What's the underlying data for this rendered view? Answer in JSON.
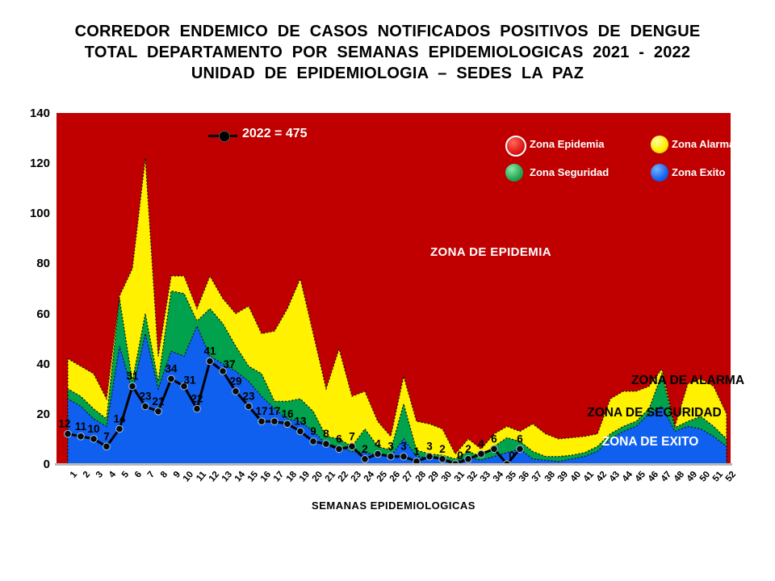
{
  "title": {
    "line1": "CORREDOR ENDEMICO DE CASOS NOTIFICADOS POSITIVOS DE DENGUE",
    "line2": "TOTAL DEPARTAMENTO POR SEMANAS EPIDEMIOLOGICAS 2021 - 2022",
    "line3": "UNIDAD DE EPIDEMIOLOGIA – SEDES LA PAZ"
  },
  "series_legend": {
    "label_2022": "2022 = 475"
  },
  "legend": {
    "items": [
      {
        "id": "epidemia",
        "label": "Zona Epidemia",
        "color": "#e01818"
      },
      {
        "id": "alarma",
        "label": "Zona Alarma",
        "color": "#ffee00"
      },
      {
        "id": "seguridad",
        "label": "Zona Seguridad",
        "color": "#22a854"
      },
      {
        "id": "exito",
        "label": "Zona Exito",
        "color": "#1266f0"
      }
    ]
  },
  "zone_labels": {
    "epidemia": "ZONA DE EPIDEMIA",
    "alarma": "ZONA DE ALARMA",
    "seguridad": "ZONA DE  SEGURIDAD",
    "exito": "ZONA DE  EXITO"
  },
  "chart_data": {
    "type": "area+line",
    "title": "Corredor endemico dengue 2021-2022",
    "xlabel": "SEMANAS EPIDEMIOLOGICAS",
    "ylabel": "",
    "ylim": [
      0,
      140
    ],
    "yticks": [
      0,
      20,
      40,
      60,
      80,
      100,
      120,
      140
    ],
    "x": [
      1,
      2,
      3,
      4,
      5,
      6,
      7,
      8,
      9,
      10,
      11,
      12,
      13,
      14,
      15,
      16,
      17,
      18,
      19,
      20,
      21,
      22,
      23,
      24,
      25,
      26,
      27,
      28,
      29,
      30,
      31,
      32,
      33,
      34,
      35,
      36,
      37,
      38,
      39,
      40,
      41,
      42,
      43,
      44,
      45,
      46,
      47,
      48,
      49,
      50,
      51,
      52
    ],
    "grid": false,
    "legend_position": "top-right inside plot",
    "background_zone_color": "#c00000",
    "series": [
      {
        "name": "Zona Alarma (limite superior)",
        "type": "area",
        "color": "#fff100",
        "values": [
          42,
          39,
          36,
          26,
          67,
          78,
          122,
          43,
          75,
          75,
          62,
          75,
          66,
          60,
          63,
          52,
          53,
          62,
          74,
          52,
          30,
          46,
          27,
          29,
          17,
          11,
          35,
          17,
          16,
          14,
          4,
          10,
          6,
          12,
          15,
          13,
          16,
          12,
          10,
          10.5,
          11,
          12,
          26,
          29,
          29,
          31,
          38,
          15,
          32,
          34,
          31,
          20
        ]
      },
      {
        "name": "Zona Seguridad (limite superior)",
        "type": "area",
        "color": "#00a24d",
        "values": [
          30,
          27,
          22,
          18,
          66,
          33,
          60,
          33,
          69,
          68,
          57,
          62,
          56,
          47,
          39,
          36,
          25,
          25,
          26,
          21,
          11,
          10,
          7,
          14,
          7,
          5.5,
          24,
          5.5,
          4,
          3.5,
          2,
          5,
          3,
          7,
          10.5,
          9,
          5,
          3,
          3,
          3.5,
          4.5,
          7,
          12,
          15,
          17,
          22,
          36,
          14.5,
          17,
          19,
          15,
          10
        ]
      },
      {
        "name": "Zona Exito (limite superior)",
        "type": "area",
        "color": "#1060f0",
        "values": [
          26,
          23,
          18,
          15,
          47,
          29,
          52,
          30,
          45,
          43,
          55,
          43,
          40,
          37,
          33,
          27,
          22,
          18,
          17,
          13,
          8,
          7,
          5,
          4.5,
          3.5,
          3,
          10,
          3,
          2.5,
          2,
          1,
          2.5,
          1.5,
          3,
          4.5,
          6,
          2,
          1.5,
          1,
          2,
          3,
          5,
          10,
          13,
          15,
          20,
          23,
          13,
          15,
          14,
          11,
          7
        ]
      },
      {
        "name": "2022",
        "type": "line",
        "color": "#000000",
        "total": 475,
        "values": [
          12,
          11,
          10,
          7,
          14,
          31,
          23,
          21,
          34,
          31,
          22,
          41,
          37,
          29,
          23,
          17,
          17,
          16,
          13,
          9,
          8,
          6,
          7,
          2,
          4,
          3,
          3,
          1,
          3,
          2,
          0,
          2,
          4,
          6,
          0,
          6
        ]
      }
    ]
  }
}
